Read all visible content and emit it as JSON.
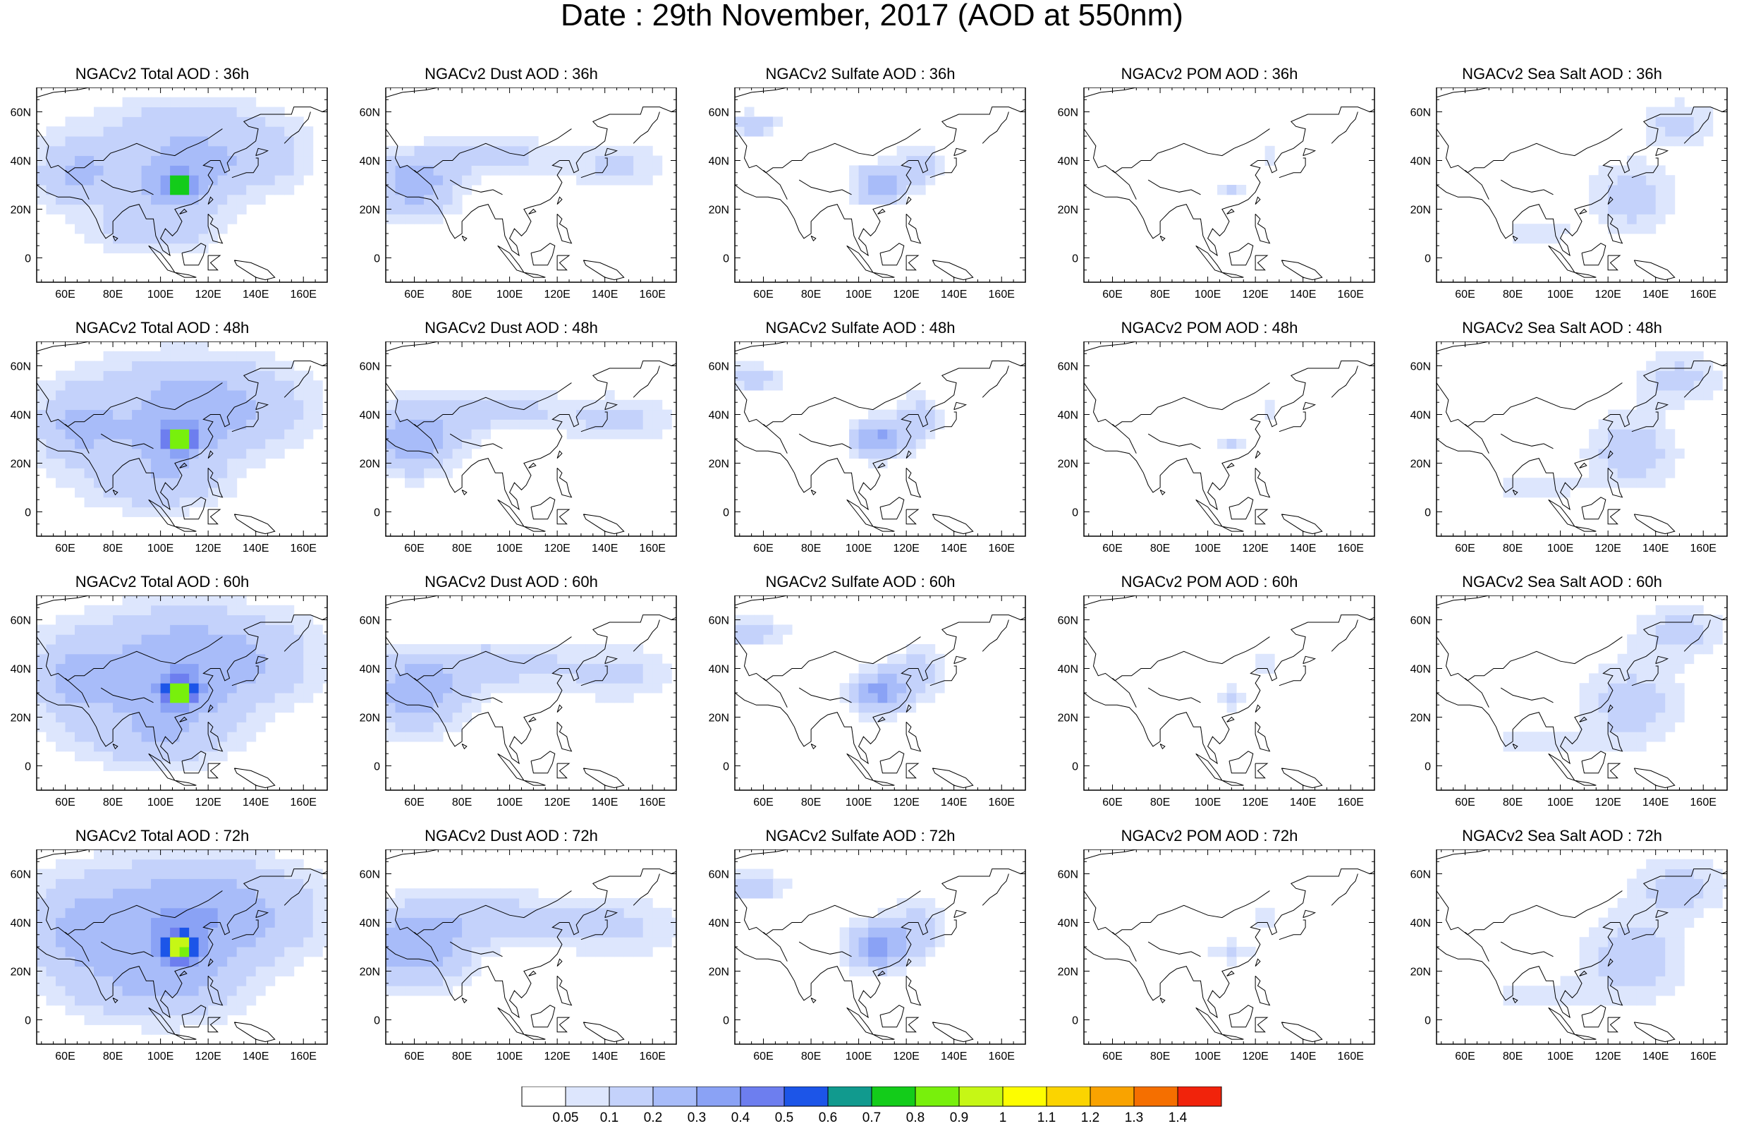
{
  "title": "Date : 29th November, 2017 (AOD at 550nm)",
  "map": {
    "lon_range": [
      48,
      170
    ],
    "lat_range": [
      -10,
      70
    ],
    "lon_ticks": [
      "60E",
      "80E",
      "100E",
      "120E",
      "140E",
      "160E"
    ],
    "lat_ticks": [
      "0",
      "20N",
      "40N",
      "60N"
    ]
  },
  "panels": [
    {
      "title": "NGACv2 Total AOD : 36h",
      "species": "total",
      "hour": 36
    },
    {
      "title": "NGACv2 Dust AOD : 36h",
      "species": "dust",
      "hour": 36
    },
    {
      "title": "NGACv2 Sulfate AOD : 36h",
      "species": "sulfate",
      "hour": 36
    },
    {
      "title": "NGACv2 POM AOD : 36h",
      "species": "pom",
      "hour": 36
    },
    {
      "title": "NGACv2 Sea Salt AOD : 36h",
      "species": "seasalt",
      "hour": 36
    },
    {
      "title": "NGACv2 Total AOD : 48h",
      "species": "total",
      "hour": 48
    },
    {
      "title": "NGACv2 Dust AOD : 48h",
      "species": "dust",
      "hour": 48
    },
    {
      "title": "NGACv2 Sulfate AOD : 48h",
      "species": "sulfate",
      "hour": 48
    },
    {
      "title": "NGACv2 POM AOD : 48h",
      "species": "pom",
      "hour": 48
    },
    {
      "title": "NGACv2 Sea Salt AOD : 48h",
      "species": "seasalt",
      "hour": 48
    },
    {
      "title": "NGACv2 Total AOD : 60h",
      "species": "total",
      "hour": 60
    },
    {
      "title": "NGACv2 Dust AOD : 60h",
      "species": "dust",
      "hour": 60
    },
    {
      "title": "NGACv2 Sulfate AOD : 60h",
      "species": "sulfate",
      "hour": 60
    },
    {
      "title": "NGACv2 POM AOD : 60h",
      "species": "pom",
      "hour": 60
    },
    {
      "title": "NGACv2 Sea Salt AOD : 60h",
      "species": "seasalt",
      "hour": 60
    },
    {
      "title": "NGACv2 Total AOD : 72h",
      "species": "total",
      "hour": 72
    },
    {
      "title": "NGACv2 Dust AOD : 72h",
      "species": "dust",
      "hour": 72
    },
    {
      "title": "NGACv2 Sulfate AOD : 72h",
      "species": "sulfate",
      "hour": 72
    },
    {
      "title": "NGACv2 POM AOD : 72h",
      "species": "pom",
      "hour": 72
    },
    {
      "title": "NGACv2 Sea Salt  AOD : 72h",
      "species": "seasalt",
      "hour": 72
    }
  ],
  "colorbar": {
    "labels": [
      "0.05",
      "0.1",
      "0.2",
      "0.3",
      "0.4",
      "0.5",
      "0.6",
      "0.7",
      "0.8",
      "0.9",
      "1",
      "1.1",
      "1.2",
      "1.3",
      "1.4"
    ],
    "colors": [
      "#ffffff",
      "#dde6fd",
      "#c4d2fb",
      "#a8bcf9",
      "#8aa2f5",
      "#6d7eef",
      "#1c55e8",
      "#119a8e",
      "#13cc1a",
      "#78f00c",
      "#c6f715",
      "#fdfd00",
      "#fbd400",
      "#f9a300",
      "#f56f00",
      "#f1230b"
    ]
  },
  "plumes": {
    "total": [
      {
        "lon": 105,
        "lat": 32,
        "rlon": 28,
        "rlat": 22,
        "aod": 0.25
      },
      {
        "lon": 108,
        "lat": 30,
        "rlon": 6,
        "rlat": 5,
        "aod": 0.78
      },
      {
        "lon": 65,
        "lat": 35,
        "rlon": 22,
        "rlat": 18,
        "aod": 0.22
      },
      {
        "lon": 140,
        "lat": 40,
        "rlon": 30,
        "rlat": 18,
        "aod": 0.15
      },
      {
        "lon": 110,
        "lat": 55,
        "rlon": 50,
        "rlat": 15,
        "aod": 0.12
      },
      {
        "lon": 95,
        "lat": 10,
        "rlon": 35,
        "rlat": 12,
        "aod": 0.12
      }
    ],
    "dust": [
      {
        "lon": 60,
        "lat": 30,
        "rlon": 22,
        "rlat": 16,
        "aod": 0.28
      },
      {
        "lon": 95,
        "lat": 42,
        "rlon": 30,
        "rlat": 10,
        "aod": 0.14
      },
      {
        "lon": 145,
        "lat": 38,
        "rlon": 28,
        "rlat": 12,
        "aod": 0.12
      }
    ],
    "sulfate": [
      {
        "lon": 108,
        "lat": 30,
        "rlon": 12,
        "rlat": 9,
        "aod": 0.32
      },
      {
        "lon": 125,
        "lat": 38,
        "rlon": 12,
        "rlat": 12,
        "aod": 0.14
      },
      {
        "lon": 55,
        "lat": 55,
        "rlon": 15,
        "rlat": 6,
        "aod": 0.16
      }
    ],
    "pom": [
      {
        "lon": 110,
        "lat": 28,
        "rlon": 9,
        "rlat": 5,
        "aod": 0.11
      },
      {
        "lon": 125,
        "lat": 42,
        "rlon": 5,
        "rlat": 6,
        "aod": 0.09
      }
    ],
    "seasalt": [
      {
        "lon": 130,
        "lat": 25,
        "rlon": 22,
        "rlat": 18,
        "aod": 0.15
      },
      {
        "lon": 150,
        "lat": 55,
        "rlon": 20,
        "rlat": 12,
        "aod": 0.13
      },
      {
        "lon": 90,
        "lat": 10,
        "rlon": 25,
        "rlat": 6,
        "aod": 0.08
      }
    ]
  }
}
